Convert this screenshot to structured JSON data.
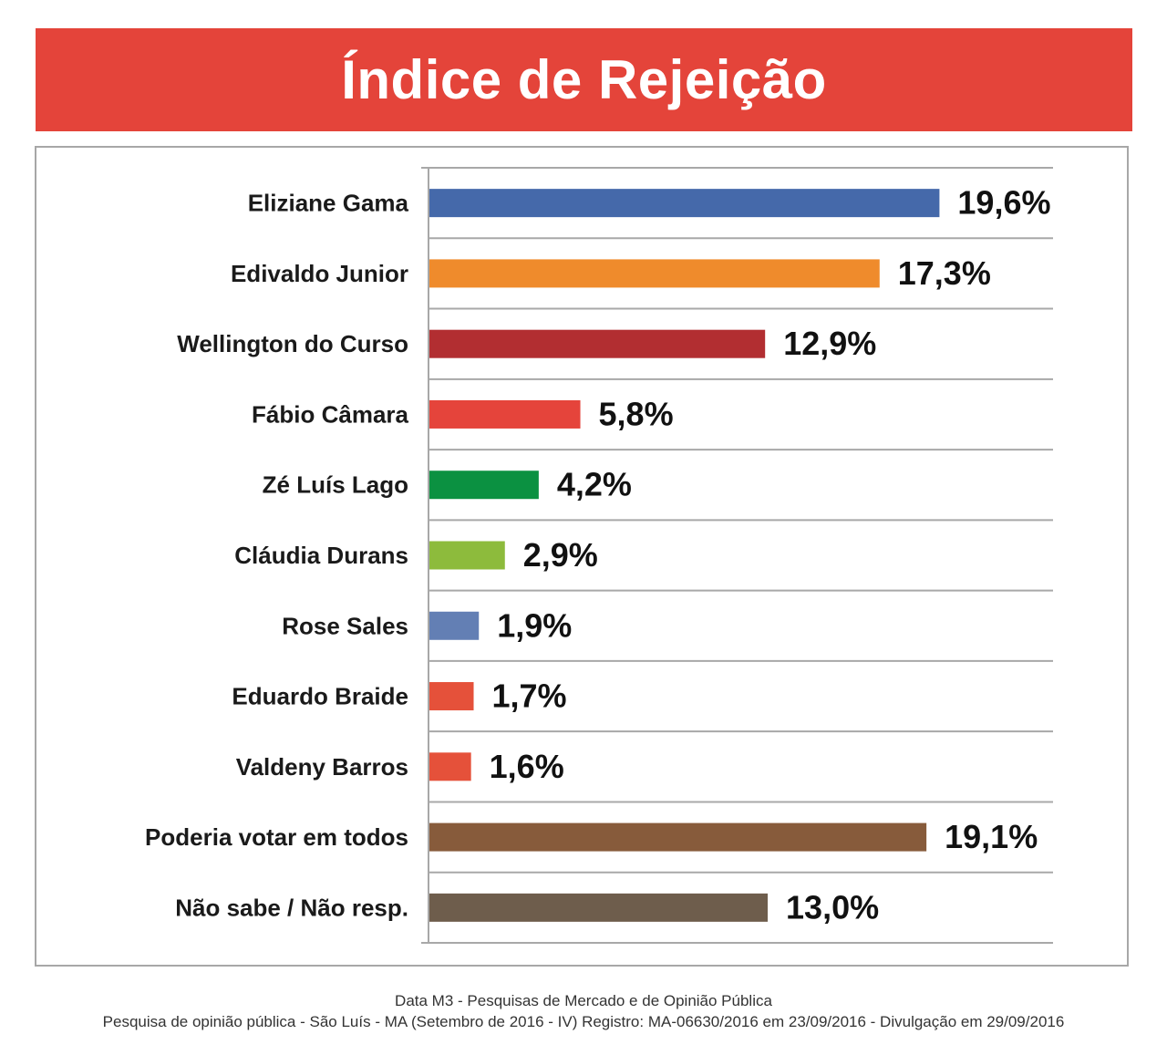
{
  "header": {
    "title": "Índice de Rejeição"
  },
  "chart_data": {
    "type": "bar",
    "orientation": "horizontal",
    "title": "Índice de Rejeição",
    "xlabel": "",
    "ylabel": "",
    "xlim": [
      0,
      24
    ],
    "grid": true,
    "legend": "none",
    "categories": [
      "Eliziane Gama",
      "Edivaldo Junior",
      "Wellington do Curso",
      "Fábio Câmara",
      "Zé Luís Lago",
      "Cláudia Durans",
      "Rose Sales",
      "Eduardo Braide",
      "Valdeny Barros",
      "Poderia votar em todos",
      "Não sabe / Não resp."
    ],
    "values": [
      19.6,
      17.3,
      12.9,
      5.8,
      4.2,
      2.9,
      1.9,
      1.7,
      1.6,
      19.1,
      13.0
    ],
    "value_labels": [
      "19,6%",
      "17,3%",
      "12,9%",
      "5,8%",
      "4,2%",
      "2,9%",
      "1,9%",
      "1,7%",
      "1,6%",
      "19,1%",
      "13,0%"
    ],
    "colors": [
      "#4569aa",
      "#ef8b2c",
      "#b22e31",
      "#e5443b",
      "#0b9141",
      "#8dbb3c",
      "#637fb4",
      "#e5513a",
      "#e5513a",
      "#875b3b",
      "#6e5d4c"
    ]
  },
  "footer": {
    "line1": "Data M3 - Pesquisas de Mercado e de Opinião Pública",
    "line2": "Pesquisa de opinião pública - São Luís - MA (Setembro de 2016 - IV) Registro: MA-06630/2016 em 23/09/2016 - Divulgação em 29/09/2016"
  }
}
